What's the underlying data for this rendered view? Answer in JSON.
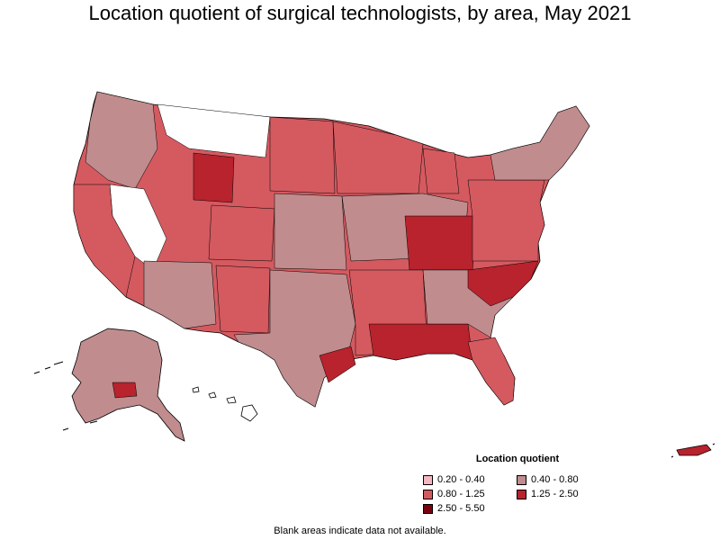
{
  "title": "Location quotient of surgical technologists, by area, May 2021",
  "legend": {
    "title": "Location quotient",
    "items": [
      {
        "label": "0.20 - 0.40",
        "color": "#f4b6c0"
      },
      {
        "label": "0.40 - 0.80",
        "color": "#c08c8e"
      },
      {
        "label": "0.80 - 1.25",
        "color": "#d45a60"
      },
      {
        "label": "1.25 - 2.50",
        "color": "#b8232d"
      },
      {
        "label": "2.50 - 5.50",
        "color": "#7a0010"
      }
    ]
  },
  "footnote": "Blank areas indicate data not available.",
  "colors": {
    "no_data": "#ffffff",
    "border": "#000000"
  }
}
